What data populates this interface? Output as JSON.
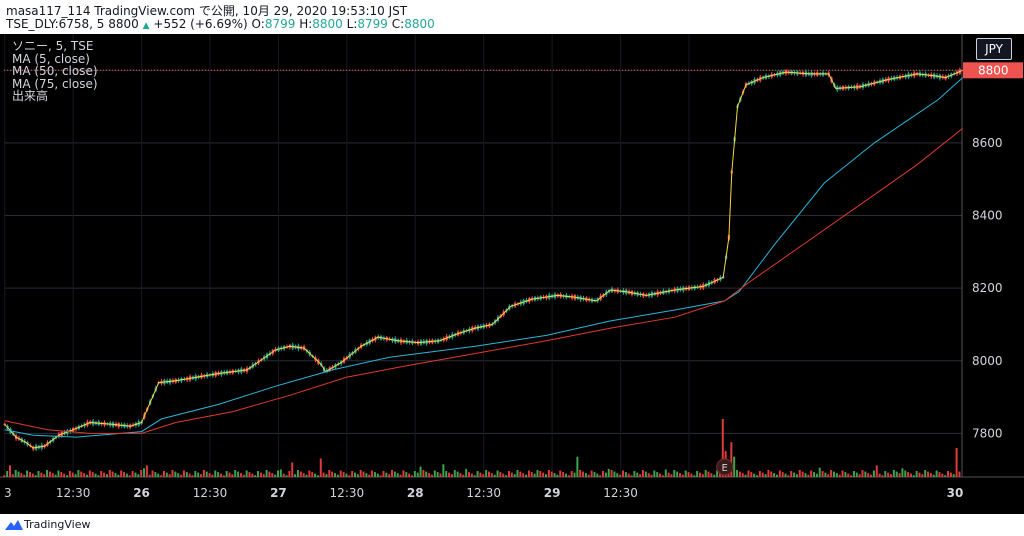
{
  "header": {
    "publish_line": "masa117_114 TradingView.com で公開, 10月 29, 2020 19:53:10 JST",
    "symbol": "TSE_DLY:6758, 5",
    "last": "8800",
    "change": "+552 (+6.69%)",
    "o_label": "O:",
    "o_value": "8799",
    "h_label": "H:",
    "h_value": "8800",
    "l_label": "L:",
    "l_value": "8799",
    "c_label": "C:",
    "c_value": "8800"
  },
  "legend": [
    "ソニー, 5, TSE",
    "MA (5, close)",
    "MA (50, close)",
    "MA (75, close)",
    "出来高"
  ],
  "currency": "JPY",
  "footer": {
    "brand": "TradingView"
  },
  "colors": {
    "up": "#26a69a",
    "down": "#ef5350",
    "ma5": "#f5d742",
    "ma50": "#29b6d8",
    "ma75": "#e0392e",
    "vol_up": "#3fa34d",
    "vol_down": "#e03b3b",
    "grid": "#2a2e39",
    "axis_text": "#d1d4dc",
    "last_price_bg": "#ef5350",
    "earnings_marker": "#3a1a1a"
  },
  "chart_data": {
    "type": "candlestick",
    "interval": "5 minute",
    "price_axis": {
      "ticks": [
        7800,
        8000,
        8200,
        8400,
        8600,
        8800
      ],
      "ylim": [
        7680,
        8900
      ]
    },
    "time_axis": {
      "labels": [
        "3",
        "12:30",
        "26",
        "12:30",
        "27",
        "12:30",
        "28",
        "12:30",
        "29",
        "12:30",
        "30"
      ],
      "bold": [
        "26",
        "27",
        "28",
        "29",
        "30"
      ]
    },
    "last_price": 8800,
    "earnings_marker": {
      "label": "E",
      "day": "29"
    },
    "series": [
      {
        "name": "MA (5, close)",
        "color": "#f5d742",
        "points": [
          [
            0,
            7825
          ],
          [
            8,
            7790
          ],
          [
            15,
            7775
          ],
          [
            20,
            7760
          ],
          [
            28,
            7765
          ],
          [
            38,
            7795
          ],
          [
            48,
            7810
          ],
          [
            60,
            7830
          ],
          [
            75,
            7825
          ],
          [
            88,
            7820
          ],
          [
            96,
            7830
          ],
          [
            108,
            7940
          ],
          [
            120,
            7945
          ],
          [
            135,
            7955
          ],
          [
            150,
            7965
          ],
          [
            170,
            7975
          ],
          [
            190,
            8030
          ],
          [
            200,
            8040
          ],
          [
            210,
            8035
          ],
          [
            222,
            7990
          ],
          [
            225,
            7970
          ],
          [
            236,
            7995
          ],
          [
            250,
            8040
          ],
          [
            262,
            8065
          ],
          [
            276,
            8055
          ],
          [
            290,
            8050
          ],
          [
            305,
            8055
          ],
          [
            318,
            8075
          ],
          [
            330,
            8090
          ],
          [
            342,
            8100
          ],
          [
            355,
            8150
          ],
          [
            370,
            8170
          ],
          [
            388,
            8180
          ],
          [
            400,
            8175
          ],
          [
            415,
            8165
          ],
          [
            425,
            8195
          ],
          [
            436,
            8190
          ],
          [
            450,
            8180
          ],
          [
            470,
            8195
          ],
          [
            490,
            8205
          ],
          [
            504,
            8230
          ],
          [
            508,
            8340
          ],
          [
            510,
            8520
          ],
          [
            514,
            8700
          ],
          [
            520,
            8760
          ],
          [
            532,
            8780
          ],
          [
            548,
            8795
          ],
          [
            565,
            8790
          ],
          [
            578,
            8790
          ],
          [
            583,
            8750
          ],
          [
            600,
            8755
          ],
          [
            620,
            8775
          ],
          [
            640,
            8790
          ],
          [
            652,
            8785
          ],
          [
            660,
            8780
          ],
          [
            672,
            8800
          ]
        ]
      },
      {
        "name": "MA (50, close)",
        "color": "#29b6d8",
        "points": [
          [
            0,
            7810
          ],
          [
            20,
            7795
          ],
          [
            50,
            7790
          ],
          [
            96,
            7805
          ],
          [
            110,
            7840
          ],
          [
            150,
            7880
          ],
          [
            190,
            7930
          ],
          [
            230,
            7975
          ],
          [
            270,
            8010
          ],
          [
            330,
            8040
          ],
          [
            380,
            8070
          ],
          [
            425,
            8110
          ],
          [
            470,
            8140
          ],
          [
            505,
            8165
          ],
          [
            515,
            8190
          ],
          [
            540,
            8320
          ],
          [
            575,
            8490
          ],
          [
            610,
            8600
          ],
          [
            640,
            8680
          ],
          [
            655,
            8720
          ],
          [
            672,
            8780
          ]
        ]
      },
      {
        "name": "MA (75, close)",
        "color": "#e0392e",
        "points": [
          [
            0,
            7835
          ],
          [
            30,
            7810
          ],
          [
            60,
            7800
          ],
          [
            96,
            7800
          ],
          [
            120,
            7830
          ],
          [
            160,
            7860
          ],
          [
            200,
            7905
          ],
          [
            240,
            7955
          ],
          [
            280,
            7985
          ],
          [
            330,
            8020
          ],
          [
            380,
            8055
          ],
          [
            425,
            8090
          ],
          [
            470,
            8120
          ],
          [
            505,
            8165
          ],
          [
            520,
            8210
          ],
          [
            560,
            8320
          ],
          [
            600,
            8430
          ],
          [
            640,
            8540
          ],
          [
            672,
            8640
          ]
        ]
      }
    ],
    "volume": [
      {
        "bar": 5,
        "rel": 0.2,
        "dir": "down"
      },
      {
        "bar": 98,
        "rel": 0.15,
        "dir": "up"
      },
      {
        "bar": 101,
        "rel": 0.2,
        "dir": "down"
      },
      {
        "bar": 195,
        "rel": 0.13,
        "dir": "up"
      },
      {
        "bar": 203,
        "rel": 0.25,
        "dir": "down"
      },
      {
        "bar": 223,
        "rel": 0.32,
        "dir": "down"
      },
      {
        "bar": 292,
        "rel": 0.18,
        "dir": "up"
      },
      {
        "bar": 308,
        "rel": 0.22,
        "dir": "up"
      },
      {
        "bar": 325,
        "rel": 0.14,
        "dir": "up"
      },
      {
        "bar": 375,
        "rel": 0.12,
        "dir": "up"
      },
      {
        "bar": 402,
        "rel": 0.35,
        "dir": "up"
      },
      {
        "bar": 425,
        "rel": 0.14,
        "dir": "up"
      },
      {
        "bar": 465,
        "rel": 0.13,
        "dir": "up"
      },
      {
        "bar": 505,
        "rel": 1.0,
        "dir": "down"
      },
      {
        "bar": 507,
        "rel": 0.45,
        "dir": "down"
      },
      {
        "bar": 510,
        "rel": 0.6,
        "dir": "down"
      },
      {
        "bar": 513,
        "rel": 0.35,
        "dir": "up"
      },
      {
        "bar": 572,
        "rel": 0.16,
        "dir": "up"
      },
      {
        "bar": 612,
        "rel": 0.2,
        "dir": "down"
      },
      {
        "bar": 630,
        "rel": 0.15,
        "dir": "up"
      },
      {
        "bar": 668,
        "rel": 0.5,
        "dir": "down"
      }
    ]
  }
}
